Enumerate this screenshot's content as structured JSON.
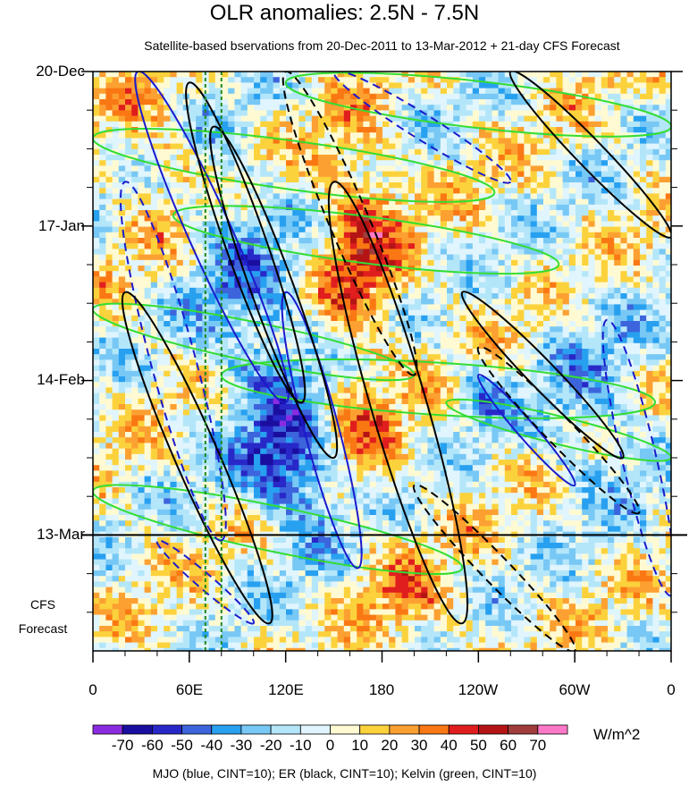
{
  "chart_data": {
    "type": "heatmap",
    "title": "OLR anomalies: 2.5N - 7.5N",
    "subtitle": "Satellite-based bservations from 20-Dec-2011 to 13-Mar-2012 + 21-day CFS Forecast",
    "x_ticks": [
      "0",
      "60E",
      "120E",
      "180",
      "120W",
      "60W",
      "0"
    ],
    "x_tick_lon": [
      0,
      60,
      120,
      180,
      240,
      300,
      360
    ],
    "y_ticks": [
      "20-Dec",
      "17-Jan",
      "14-Feb",
      "13-Mar"
    ],
    "y_tick_day": [
      0,
      28,
      56,
      84
    ],
    "xlim": [
      0,
      360
    ],
    "ylim_days": [
      0,
      105
    ],
    "observation_end": "13-Mar",
    "forecast_label": [
      "CFS",
      "Forecast"
    ],
    "colorbar": {
      "labels": [
        "-70",
        "-60",
        "-50",
        "-40",
        "-30",
        "-20",
        "-10",
        "0",
        "10",
        "20",
        "30",
        "40",
        "50",
        "60",
        "70"
      ],
      "colors": [
        "#8a2be2",
        "#1a0ea0",
        "#2828c8",
        "#3c64dc",
        "#28a0f0",
        "#78c8f5",
        "#b4e6fa",
        "#e0f5fd",
        "#fffad2",
        "#fcd23c",
        "#fca032",
        "#fa7814",
        "#e11e1e",
        "#b41414",
        "#a03c3c",
        "#ff78c8"
      ],
      "units": "W/m^2"
    },
    "contour_legend": "MJO (blue, CINT=10); ER (black, CINT=10); Kelvin (green, CINT=10)",
    "reference_lines_lon": [
      70,
      80
    ],
    "mjo_contours": [
      {
        "lon": [
          28,
          120
        ],
        "day": [
          0,
          60
        ],
        "dash": false
      },
      {
        "lon": [
          20,
          80
        ],
        "day": [
          20,
          85
        ],
        "dash": true
      },
      {
        "lon": [
          120,
          165
        ],
        "day": [
          40,
          90
        ],
        "dash": false
      },
      {
        "lon": [
          240,
          300
        ],
        "day": [
          55,
          75
        ],
        "dash": false
      },
      {
        "lon": [
          40,
          100
        ],
        "day": [
          85,
          100
        ],
        "dash": true
      },
      {
        "lon": [
          320,
          360
        ],
        "day": [
          45,
          95
        ],
        "dash": true
      },
      {
        "lon": [
          150,
          260
        ],
        "day": [
          0,
          20
        ],
        "dash": true
      }
    ],
    "er_contours": [
      {
        "lon": [
          60,
          130
        ],
        "day": [
          2,
          60
        ],
        "dash": false
      },
      {
        "lon": [
          75,
          150
        ],
        "day": [
          10,
          70
        ],
        "dash": false
      },
      {
        "lon": [
          120,
          200
        ],
        "day": [
          0,
          55
        ],
        "dash": true
      },
      {
        "lon": [
          150,
          230
        ],
        "day": [
          20,
          100
        ],
        "dash": false
      },
      {
        "lon": [
          230,
          330
        ],
        "day": [
          40,
          70
        ],
        "dash": false
      },
      {
        "lon": [
          240,
          340
        ],
        "day": [
          50,
          80
        ],
        "dash": true
      },
      {
        "lon": [
          260,
          360
        ],
        "day": [
          0,
          30
        ],
        "dash": false
      },
      {
        "lon": [
          20,
          110
        ],
        "day": [
          40,
          100
        ],
        "dash": false
      },
      {
        "lon": [
          200,
          300
        ],
        "day": [
          75,
          105
        ],
        "dash": true
      }
    ],
    "kelvin_contours": [
      {
        "lon": [
          0,
          250
        ],
        "day": [
          12,
          22
        ]
      },
      {
        "lon": [
          50,
          290
        ],
        "day": [
          26,
          35
        ]
      },
      {
        "lon": [
          0,
          200
        ],
        "day": [
          43,
          55
        ]
      },
      {
        "lon": [
          80,
          350
        ],
        "day": [
          55,
          60
        ]
      },
      {
        "lon": [
          0,
          230
        ],
        "day": [
          76,
          90
        ]
      },
      {
        "lon": [
          120,
          360
        ],
        "day": [
          2,
          10
        ]
      },
      {
        "lon": [
          220,
          360
        ],
        "day": [
          60,
          70
        ]
      }
    ]
  }
}
